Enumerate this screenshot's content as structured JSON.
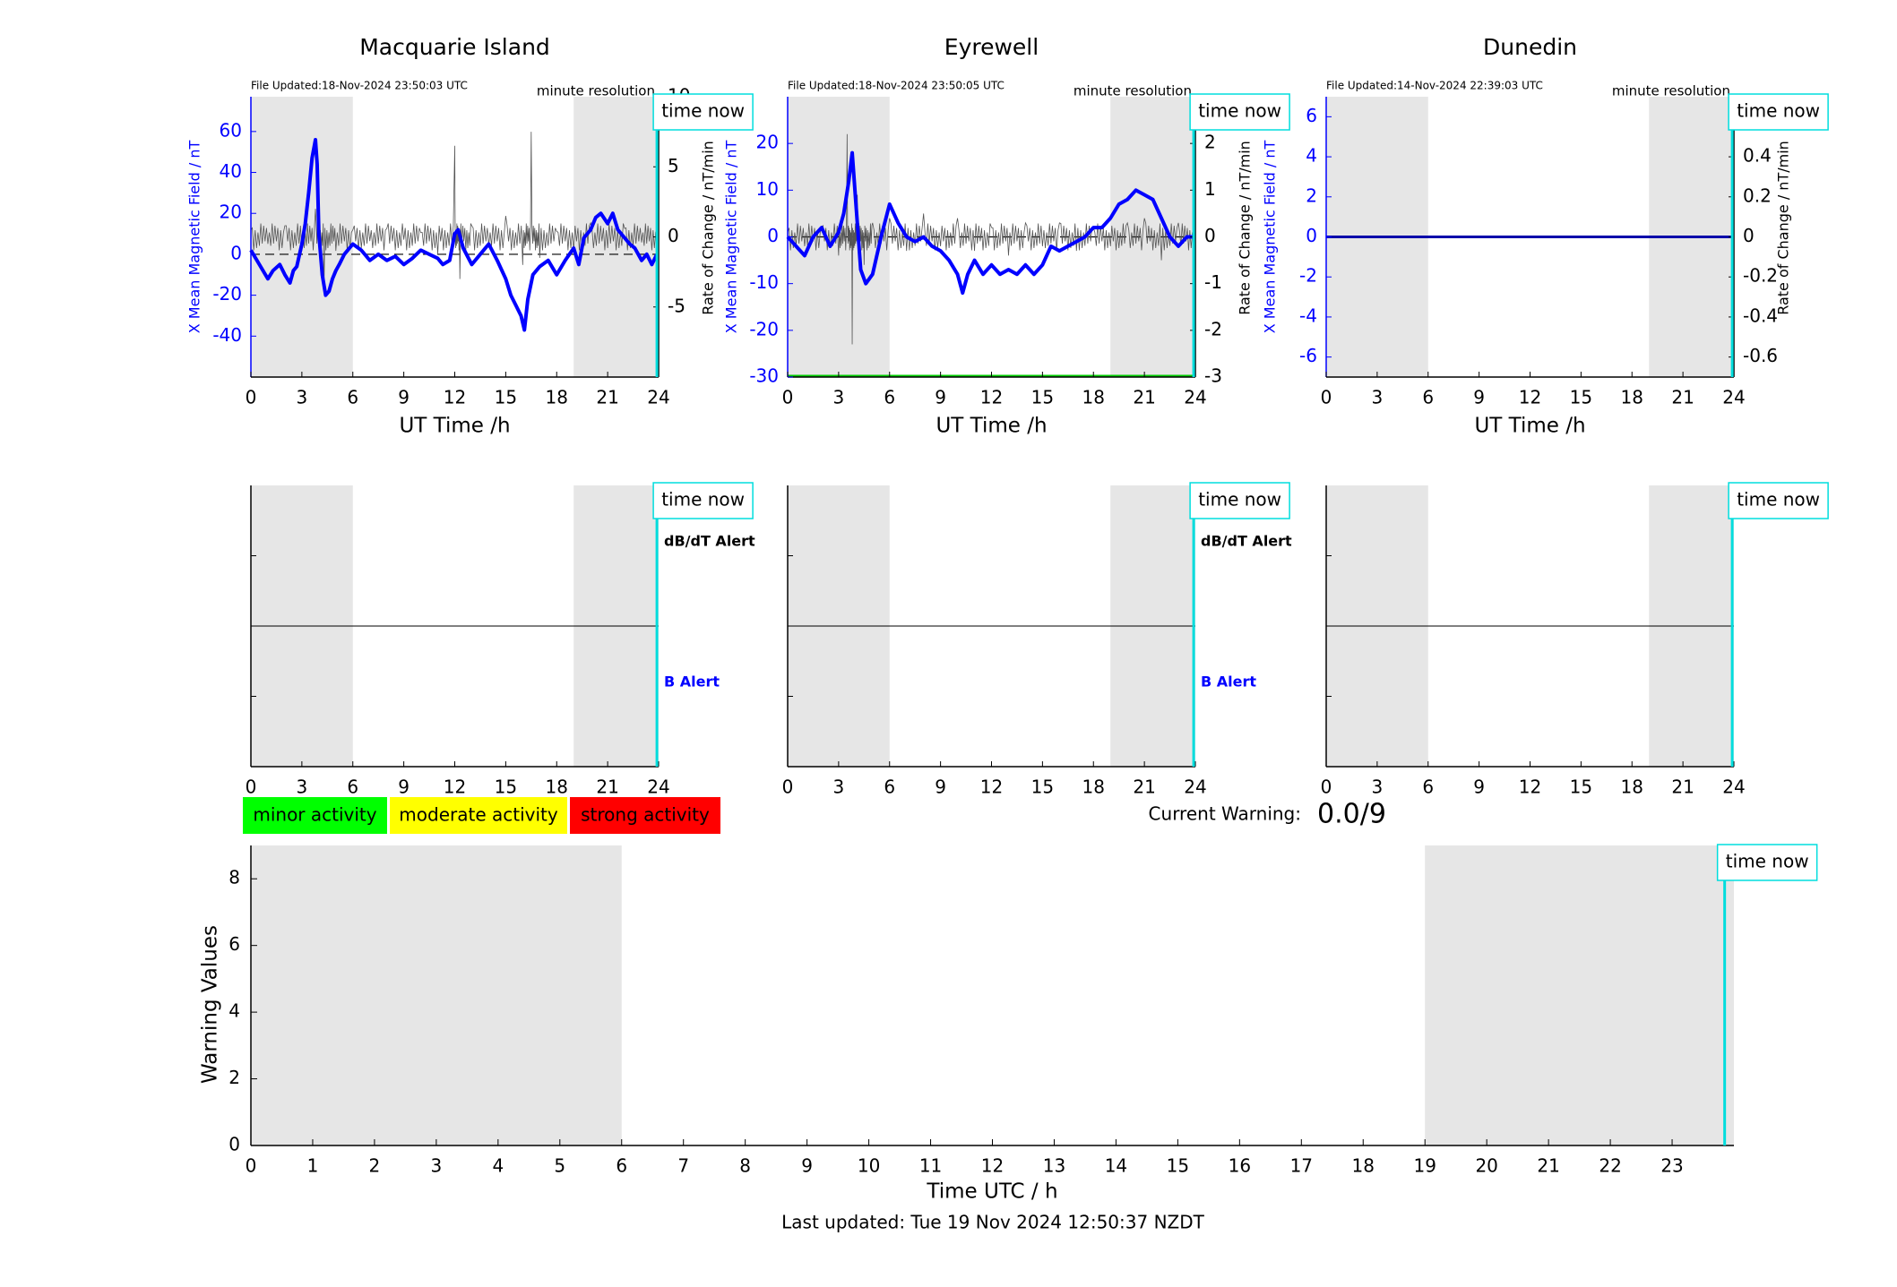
{
  "colors": {
    "shade": "#e6e6e6",
    "mag_line": "#0000ff",
    "rate_line": "#555555",
    "time_now": "#00dddd",
    "axis": "#000000",
    "minor": "#00ff00",
    "moderate": "#ffff00",
    "strong": "#ff0000",
    "green_line": "#00cc00",
    "darkblue": "#0000aa"
  },
  "top_row": {
    "stations": [
      {
        "title": "Macquarie Island",
        "file_updated": "File Updated:18-Nov-2024 23:50:03 UTC",
        "resolution": "minute resolution",
        "time_now": "time now",
        "xlabel": "UT Time /h",
        "ylabel_left": "X Mean Magnetic Field / nT",
        "ylabel_right": "Rate of Change / nT/min",
        "xticks": [
          "0",
          "3",
          "6",
          "9",
          "12",
          "15",
          "18",
          "21",
          "24"
        ],
        "yticks_left": [
          "-40",
          "-20",
          "0",
          "20",
          "40",
          "60"
        ],
        "yticks_right": [
          "-5",
          "0",
          "5",
          "10"
        ]
      },
      {
        "title": "Eyrewell",
        "file_updated": "File Updated:18-Nov-2024 23:50:05 UTC",
        "resolution": "minute resolution",
        "time_now": "time now",
        "xlabel": "UT Time /h",
        "ylabel_left": "X Mean Magnetic Field / nT",
        "ylabel_right": "Rate of Change / nT/min",
        "xticks": [
          "0",
          "3",
          "6",
          "9",
          "12",
          "15",
          "18",
          "21",
          "24"
        ],
        "yticks_left": [
          "-30",
          "-20",
          "-10",
          "0",
          "10",
          "20"
        ],
        "yticks_right": [
          "-3",
          "-2",
          "-1",
          "0",
          "1",
          "2"
        ]
      },
      {
        "title": "Dunedin",
        "file_updated": "File Updated:14-Nov-2024 22:39:03 UTC",
        "resolution": "minute resolution",
        "time_now": "time now",
        "xlabel": "UT Time /h",
        "ylabel_left": "X Mean Magnetic Field / nT",
        "ylabel_right": "Rate of Change / nT/min",
        "xticks": [
          "0",
          "3",
          "6",
          "9",
          "12",
          "15",
          "18",
          "21",
          "24"
        ],
        "yticks_left": [
          "-6",
          "-4",
          "-2",
          "0",
          "2",
          "4",
          "6"
        ],
        "yticks_right": [
          "-0.6",
          "-0.4",
          "-0.2",
          "0",
          "0.2",
          "0.4",
          "0.6"
        ]
      }
    ]
  },
  "middle_row": {
    "panels": [
      {
        "time_now": "time now",
        "dbdt_alert": "dB/dT Alert",
        "b_alert": "B Alert",
        "xticks": [
          "0",
          "3",
          "6",
          "9",
          "12",
          "15",
          "18",
          "21",
          "24"
        ]
      },
      {
        "time_now": "time now",
        "dbdt_alert": "dB/dT Alert",
        "b_alert": "B Alert",
        "xticks": [
          "0",
          "3",
          "6",
          "9",
          "12",
          "15",
          "18",
          "21",
          "24"
        ]
      },
      {
        "time_now": "time now",
        "dbdt_alert": "",
        "b_alert": "",
        "xticks": [
          "0",
          "3",
          "6",
          "9",
          "12",
          "15",
          "18",
          "21",
          "24"
        ]
      }
    ]
  },
  "legend": {
    "minor": "minor activity",
    "moderate": "moderate activity",
    "strong": "strong activity"
  },
  "current_warning": {
    "label": "Current Warning:",
    "value": "0.0/9"
  },
  "warning_chart": {
    "time_now": "time now",
    "xlabel": "Time UTC / h",
    "ylabel": "Warning Values",
    "xticks": [
      "0",
      "1",
      "2",
      "3",
      "4",
      "5",
      "6",
      "7",
      "8",
      "9",
      "10",
      "11",
      "12",
      "13",
      "14",
      "15",
      "16",
      "17",
      "18",
      "19",
      "20",
      "21",
      "22",
      "23"
    ],
    "yticks": [
      "0",
      "2",
      "4",
      "6",
      "8"
    ]
  },
  "footer": {
    "last_updated": "Last updated: Tue 19 Nov 2024 12:50:37 NZDT"
  },
  "chart_data": [
    {
      "type": "line",
      "title": "Macquarie Island",
      "xlabel": "UT Time /h",
      "ylabel": "X Mean Magnetic Field / nT",
      "xlim": [
        0,
        24
      ],
      "ylim": [
        -60,
        77
      ],
      "y2label": "Rate of Change / nT/min",
      "y2lim": [
        -10,
        10
      ],
      "shaded_hours": [
        [
          0,
          6
        ],
        [
          19,
          24
        ]
      ],
      "time_now": 23.9,
      "series": [
        {
          "axis": "left",
          "x": [
            0,
            0.5,
            1,
            1.3,
            1.7,
            2,
            2.3,
            2.5,
            2.7,
            3,
            3.2,
            3.4,
            3.6,
            3.8,
            3.9,
            4.0,
            4.2,
            4.4,
            4.6,
            4.8,
            5.0,
            5.2,
            5.5,
            6,
            6.5,
            7,
            7.5,
            8,
            8.5,
            9,
            9.5,
            10,
            10.5,
            11,
            11.3,
            11.7,
            12,
            12.2,
            12.5,
            13,
            13.5,
            14,
            14.5,
            15,
            15.3,
            15.6,
            15.9,
            16.1,
            16.3,
            16.6,
            17,
            17.5,
            18,
            18.5,
            19,
            19.3,
            19.6,
            20,
            20.3,
            20.6,
            21,
            21.3,
            21.6,
            22,
            22.3,
            22.6,
            23,
            23.3,
            23.6,
            23.9
          ],
          "y": [
            2,
            -5,
            -12,
            -8,
            -5,
            -10,
            -14,
            -8,
            -6,
            5,
            15,
            30,
            47,
            56,
            44,
            10,
            -10,
            -20,
            -18,
            -12,
            -8,
            -5,
            0,
            5,
            2,
            -3,
            0,
            -3,
            -1,
            -5,
            -2,
            2,
            0,
            -2,
            -5,
            -3,
            10,
            12,
            3,
            -5,
            0,
            5,
            -3,
            -12,
            -20,
            -25,
            -30,
            -37,
            -22,
            -10,
            -6,
            -3,
            -10,
            -3,
            3,
            -5,
            8,
            12,
            18,
            20,
            15,
            20,
            12,
            8,
            5,
            3,
            -3,
            0,
            -5,
            0
          ]
        },
        {
          "axis": "right",
          "name": "",
          "x": [
            0,
            1,
            2,
            3,
            3.8,
            4.3,
            5,
            6,
            7,
            8,
            9,
            10,
            11,
            12,
            12.3,
            13,
            14,
            15,
            16,
            16.5,
            17,
            18,
            19,
            20,
            21,
            22,
            23,
            23.9
          ],
          "y": [
            0.5,
            -0.5,
            0.8,
            -1,
            2,
            -4,
            -1,
            0.5,
            -0.3,
            0.6,
            -0.2,
            0.3,
            -1.2,
            6.5,
            -3,
            0.8,
            -0.6,
            1.5,
            -2,
            7.5,
            -1.5,
            0.4,
            -1,
            1,
            -0.8,
            0.6,
            -0.4,
            0.2
          ]
        }
      ]
    },
    {
      "type": "line",
      "title": "Eyrewell",
      "xlabel": "UT Time /h",
      "ylabel": "X Mean Magnetic Field / nT",
      "xlim": [
        0,
        24
      ],
      "ylim": [
        -30,
        30
      ],
      "y2label": "Rate of Change / nT/min",
      "y2lim": [
        -3,
        3
      ],
      "shaded_hours": [
        [
          0,
          6
        ],
        [
          19,
          24
        ]
      ],
      "time_now": 23.9,
      "series": [
        {
          "axis": "left",
          "x": [
            0,
            0.5,
            1,
            1.5,
            2,
            2.5,
            3,
            3.3,
            3.6,
            3.8,
            4,
            4.3,
            4.6,
            5,
            5.5,
            6,
            6.5,
            7,
            7.5,
            8,
            8.5,
            9,
            9.5,
            10,
            10.3,
            10.6,
            11,
            11.5,
            12,
            12.5,
            13,
            13.5,
            14,
            14.5,
            15,
            15.5,
            16,
            16.5,
            17,
            17.5,
            18,
            18.5,
            19,
            19.5,
            20,
            20.5,
            21,
            21.5,
            22,
            22.5,
            23,
            23.5,
            23.9
          ],
          "y": [
            0,
            -2,
            -4,
            0,
            2,
            -2,
            1,
            5,
            12,
            18,
            8,
            -7,
            -10,
            -8,
            0,
            7,
            3,
            0,
            -1,
            0,
            -2,
            -3,
            -5,
            -8,
            -12,
            -8,
            -5,
            -8,
            -6,
            -8,
            -7,
            -8,
            -6,
            -8,
            -6,
            -2,
            -3,
            -2,
            -1,
            0,
            2,
            2,
            4,
            7,
            8,
            10,
            9,
            8,
            4,
            0,
            -2,
            0,
            0
          ]
        },
        {
          "axis": "right",
          "name": "",
          "x": [
            0,
            1,
            2,
            3,
            3.5,
            3.8,
            4.1,
            4.5,
            5,
            6,
            7,
            8,
            9,
            10,
            11,
            12,
            13,
            14,
            15,
            16,
            17,
            18,
            19,
            20,
            21,
            22,
            23,
            23.9
          ],
          "y": [
            0.1,
            -0.2,
            0.2,
            -0.4,
            2.2,
            -2.3,
            0.9,
            -0.6,
            0.3,
            0.4,
            -0.3,
            0.5,
            -0.2,
            0.4,
            -0.3,
            0.2,
            -0.4,
            0.3,
            -0.2,
            0.3,
            -0.3,
            0.2,
            -0.2,
            0.3,
            0.4,
            -0.5,
            0.3,
            0
          ]
        }
      ]
    },
    {
      "type": "line",
      "title": "Dunedin",
      "xlabel": "UT Time /h",
      "ylabel": "X Mean Magnetic Field / nT",
      "xlim": [
        0,
        24
      ],
      "ylim": [
        -7,
        7
      ],
      "y2label": "Rate of Change / nT/min",
      "y2lim": [
        -0.7,
        0.7
      ],
      "shaded_hours": [
        [
          0,
          6
        ],
        [
          19,
          24
        ]
      ],
      "time_now": 23.9,
      "series": [
        {
          "axis": "left",
          "x": [
            0,
            24
          ],
          "y": [
            0,
            0
          ]
        }
      ]
    },
    {
      "type": "line",
      "xlabel": "Time UTC / h",
      "ylabel": "Warning Values",
      "xlim": [
        0,
        24
      ],
      "ylim": [
        0,
        9
      ],
      "shaded_hours": [
        [
          0,
          6
        ],
        [
          19,
          24
        ]
      ],
      "time_now": 23.85,
      "series": []
    }
  ]
}
